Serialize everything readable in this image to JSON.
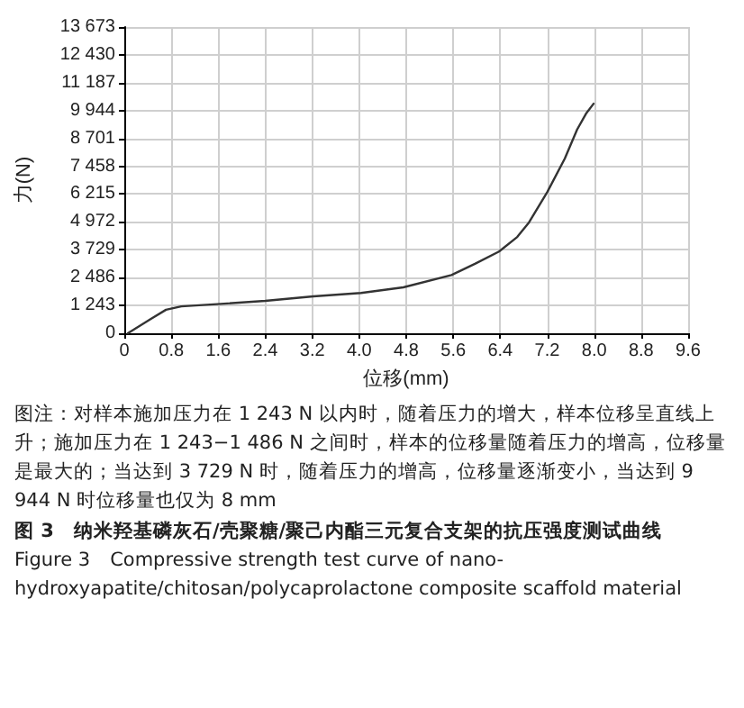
{
  "chart_data": {
    "type": "line",
    "title": "图 3　纳米羟基磷灰石/壳聚糖/聚己内酯三元复合支架的抗压强度测试曲线",
    "subtitle": "Figure 3　Compressive strength test curve of nano-hydroxyapatite/chitosan/polycaprolactone composite scaffold material",
    "xlabel": "位移(mm)",
    "ylabel": "力(N)",
    "annotations": [
      "图注：对样本施加压力在 1 243 N 以内时，随着压力的增大，样本位移呈直线上升；施加压力在 1 243−1 486 N 之间时，样本的位移量随着压力的增高，位移量是最大的；当达到 3 729 N 时，随着压力的增高，位移量逐渐变小，当达到 9 944 N  时位移量也仅为 8 mm"
    ],
    "x": [
      0.06,
      0.46,
      0.71,
      0.97,
      1.58,
      2.4,
      3.22,
      4.03,
      4.75,
      5.57,
      5.97,
      6.38,
      6.69,
      6.89,
      7.2,
      7.5,
      7.71,
      7.86,
      7.99
    ],
    "series": [
      {
        "color": "#333333",
        "values": [
          0,
          650,
          1050,
          1200,
          1300,
          1450,
          1650,
          1800,
          2050,
          2600,
          3100,
          3650,
          4300,
          4950,
          6300,
          7800,
          9100,
          9800,
          10250
        ]
      }
    ],
    "xlim": [
      0,
      9.6
    ],
    "xticks": [
      0,
      0.8,
      1.6,
      2.4,
      3.2,
      {
        "value": 4,
        "label": "4.0"
      },
      4.8,
      5.6,
      6.4,
      7.2,
      {
        "value": 8,
        "label": "8.0"
      },
      8.8,
      9.6
    ],
    "ylim": [
      0,
      13673
    ],
    "yticks": [
      0,
      {
        "value": 1243,
        "label": "1 243"
      },
      {
        "value": 2486,
        "label": "2 486"
      },
      {
        "value": 3729,
        "label": "3 729"
      },
      {
        "value": 4972,
        "label": "4 972"
      },
      {
        "value": 6215,
        "label": "6 215"
      },
      {
        "value": 7458,
        "label": "7 458"
      },
      {
        "value": 8701,
        "label": "8 701"
      },
      {
        "value": 9944,
        "label": "9 944"
      },
      {
        "value": 11187,
        "label": "11 187"
      },
      {
        "value": 12430,
        "label": "12 430"
      },
      {
        "value": 13673,
        "label": "13 673"
      }
    ],
    "grid": true,
    "marker": "none",
    "line_style": "solid"
  }
}
